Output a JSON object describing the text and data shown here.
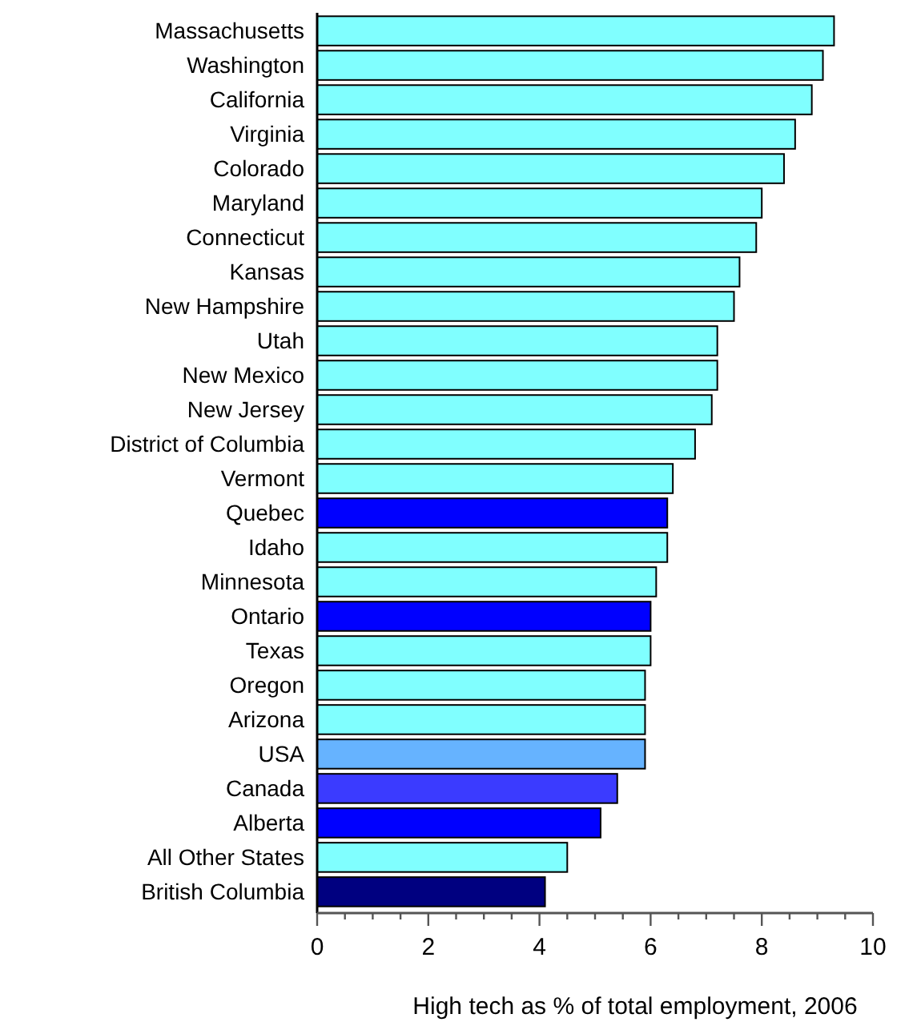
{
  "chart_data": {
    "type": "bar",
    "orientation": "horizontal",
    "xlabel": "High tech as % of total employment, 2006",
    "categories": [
      "Massachusetts",
      "Washington",
      "California",
      "Virginia",
      "Colorado",
      "Maryland",
      "Connecticut",
      "Kansas",
      "New Hampshire",
      "Utah",
      "New Mexico",
      "New Jersey",
      "District of Columbia",
      "Vermont",
      "Quebec",
      "Idaho",
      "Minnesota",
      "Ontario",
      "Texas",
      "Oregon",
      "Arizona",
      "USA",
      "Canada",
      "Alberta",
      "All Other States",
      "British Columbia"
    ],
    "values": [
      9.3,
      9.1,
      8.9,
      8.6,
      8.4,
      8.0,
      7.9,
      7.6,
      7.5,
      7.2,
      7.2,
      7.1,
      6.8,
      6.4,
      6.3,
      6.3,
      6.1,
      6.0,
      6.0,
      5.9,
      5.9,
      5.9,
      5.4,
      5.1,
      4.5,
      4.1
    ],
    "colors": [
      "#80ffff",
      "#80ffff",
      "#80ffff",
      "#80ffff",
      "#80ffff",
      "#80ffff",
      "#80ffff",
      "#80ffff",
      "#80ffff",
      "#80ffff",
      "#80ffff",
      "#80ffff",
      "#80ffff",
      "#80ffff",
      "#0000ff",
      "#80ffff",
      "#80ffff",
      "#0000ff",
      "#80ffff",
      "#80ffff",
      "#80ffff",
      "#66b3ff",
      "#3b3bff",
      "#0000ff",
      "#80ffff",
      "#000080"
    ],
    "xlim": [
      0,
      10
    ],
    "xticks": [
      0,
      {
        "value": 0.5,
        "label": null
      },
      {
        "value": 1,
        "label": null
      },
      {
        "value": 1.5,
        "label": null
      },
      2,
      {
        "value": 2.5,
        "label": null
      },
      {
        "value": 3,
        "label": null
      },
      {
        "value": 3.5,
        "label": null
      },
      4,
      {
        "value": 4.5,
        "label": null
      },
      {
        "value": 5,
        "label": null
      },
      {
        "value": 5.5,
        "label": null
      },
      6,
      {
        "value": 6.5,
        "label": null
      },
      {
        "value": 7,
        "label": null
      },
      {
        "value": 7.5,
        "label": null
      },
      8,
      {
        "value": 8.5,
        "label": null
      },
      {
        "value": 9,
        "label": null
      },
      {
        "value": 9.5,
        "label": null
      },
      10
    ],
    "grid": false
  }
}
